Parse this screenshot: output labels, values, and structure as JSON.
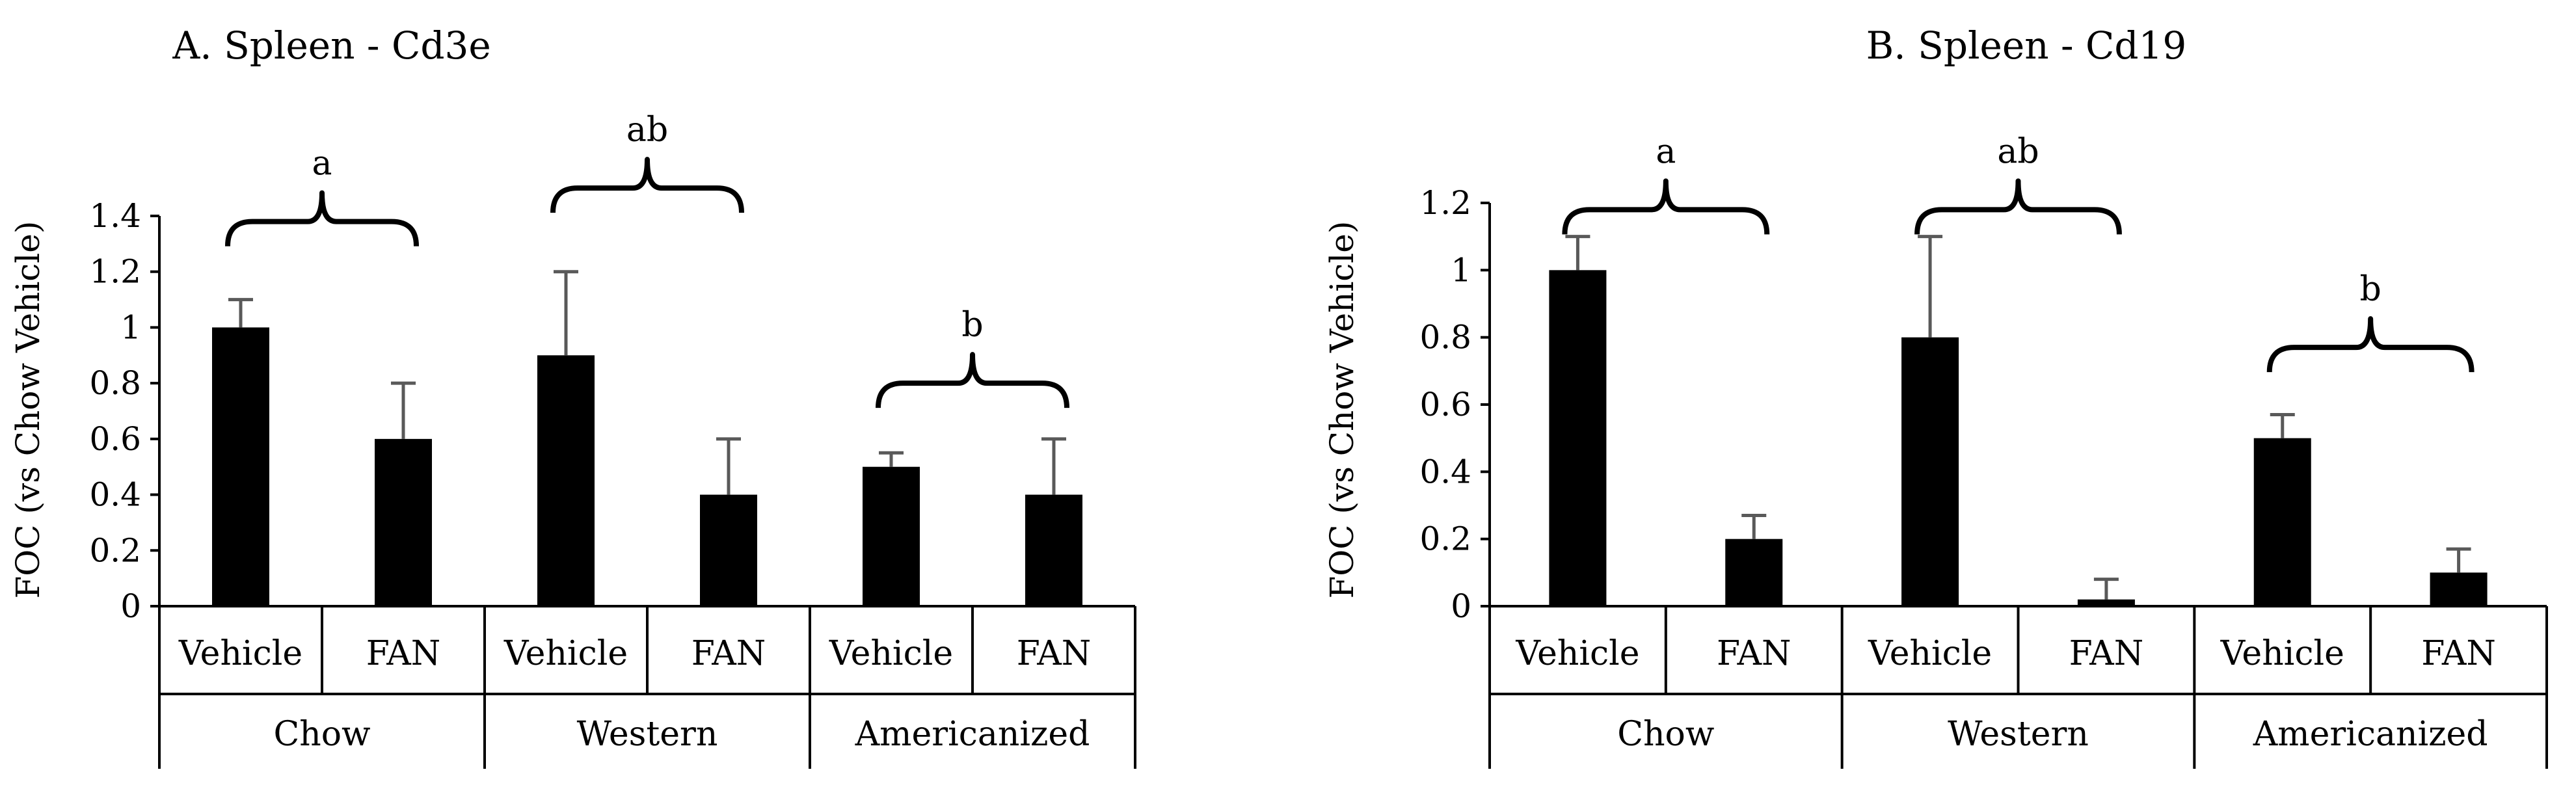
{
  "chart_data": [
    {
      "type": "bar",
      "title": "A. Spleen - Cd3e",
      "ylabel": "FOC (vs Chow Vehicle)",
      "xlabel": "",
      "ylim": [
        0,
        1.4
      ],
      "yticks": [
        0,
        0.2,
        0.4,
        0.6,
        0.8,
        1,
        1.2,
        1.4
      ],
      "ytick_labels": [
        "0",
        "0.2",
        "0.4",
        "0.6",
        "0.8",
        "1",
        "1.2",
        "1.4"
      ],
      "grid": false,
      "legend": "none",
      "groups": [
        "Chow",
        "Western",
        "Americanized"
      ],
      "categories": [
        "Vehicle",
        "FAN",
        "Vehicle",
        "FAN",
        "Vehicle",
        "FAN"
      ],
      "values": [
        1.0,
        0.6,
        0.9,
        0.4,
        0.5,
        0.4
      ],
      "errors": [
        0.1,
        0.2,
        0.3,
        0.2,
        0.05,
        0.2
      ],
      "significance": [
        {
          "label": "a",
          "group": 0,
          "level": 1.38
        },
        {
          "label": "ab",
          "group": 1,
          "level": 1.5
        },
        {
          "label": "b",
          "group": 2,
          "level": 0.8
        }
      ],
      "bar_color": "#000000",
      "error_color": "#595959"
    },
    {
      "type": "bar",
      "title": "B. Spleen - Cd19",
      "ylabel": "FOC (vs Chow Vehicle)",
      "xlabel": "",
      "ylim": [
        0,
        1.2
      ],
      "yticks": [
        0,
        0.2,
        0.4,
        0.6,
        0.8,
        1,
        1.2
      ],
      "ytick_labels": [
        "0",
        "0.2",
        "0.4",
        "0.6",
        "0.8",
        "1",
        "1.2"
      ],
      "grid": false,
      "legend": "none",
      "groups": [
        "Chow",
        "Western",
        "Americanized"
      ],
      "categories": [
        "Vehicle",
        "FAN",
        "Vehicle",
        "FAN",
        "Vehicle",
        "FAN"
      ],
      "values": [
        1.0,
        0.2,
        0.8,
        0.02,
        0.5,
        0.1
      ],
      "errors": [
        0.1,
        0.07,
        0.3,
        0.06,
        0.07,
        0.07
      ],
      "significance": [
        {
          "label": "a",
          "group": 0,
          "level": 1.18
        },
        {
          "label": "ab",
          "group": 1,
          "level": 1.18
        },
        {
          "label": "b",
          "group": 2,
          "level": 0.77
        }
      ],
      "bar_color": "#000000",
      "error_color": "#595959"
    }
  ]
}
